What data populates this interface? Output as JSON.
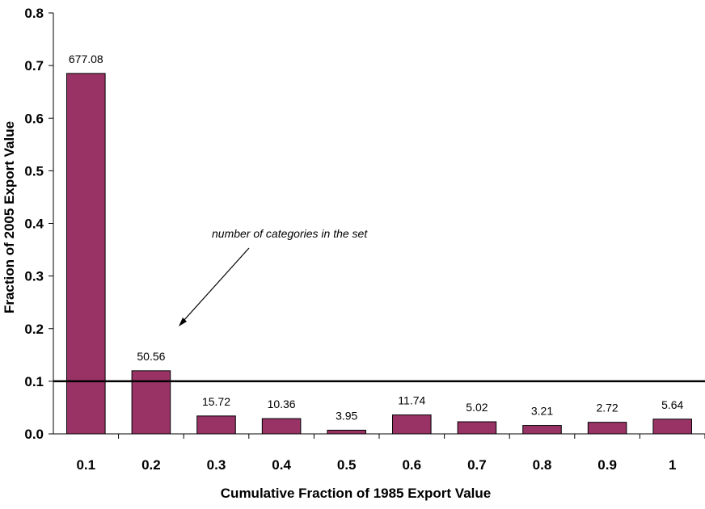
{
  "chart_data": {
    "type": "bar",
    "categories": [
      "0.1",
      "0.2",
      "0.3",
      "0.4",
      "0.5",
      "0.6",
      "0.7",
      "0.8",
      "0.9",
      "1"
    ],
    "values": [
      0.685,
      0.12,
      0.034,
      0.029,
      0.007,
      0.036,
      0.023,
      0.016,
      0.022,
      0.028
    ],
    "data_labels": [
      "677.08",
      "50.56",
      "15.72",
      "10.36",
      "3.95",
      "11.74",
      "5.02",
      "3.21",
      "2.72",
      "5.64"
    ],
    "title": "",
    "xlabel": "Cumulative Fraction of 1985 Export Value",
    "ylabel": "Fraction of 2005 Export Value",
    "ylim": [
      0,
      0.8
    ],
    "yticks": [
      0.0,
      0.1,
      0.2,
      0.3,
      0.4,
      0.5,
      0.6,
      0.7,
      0.8
    ],
    "ytick_labels": [
      "0.0",
      "0.1",
      "0.2",
      "0.3",
      "0.4",
      "0.5",
      "0.6",
      "0.7",
      "0.8"
    ],
    "reference_line": 0.1,
    "annotation": "number of categories in the set",
    "bar_color": "#993366",
    "grid": false,
    "legend": "none"
  }
}
